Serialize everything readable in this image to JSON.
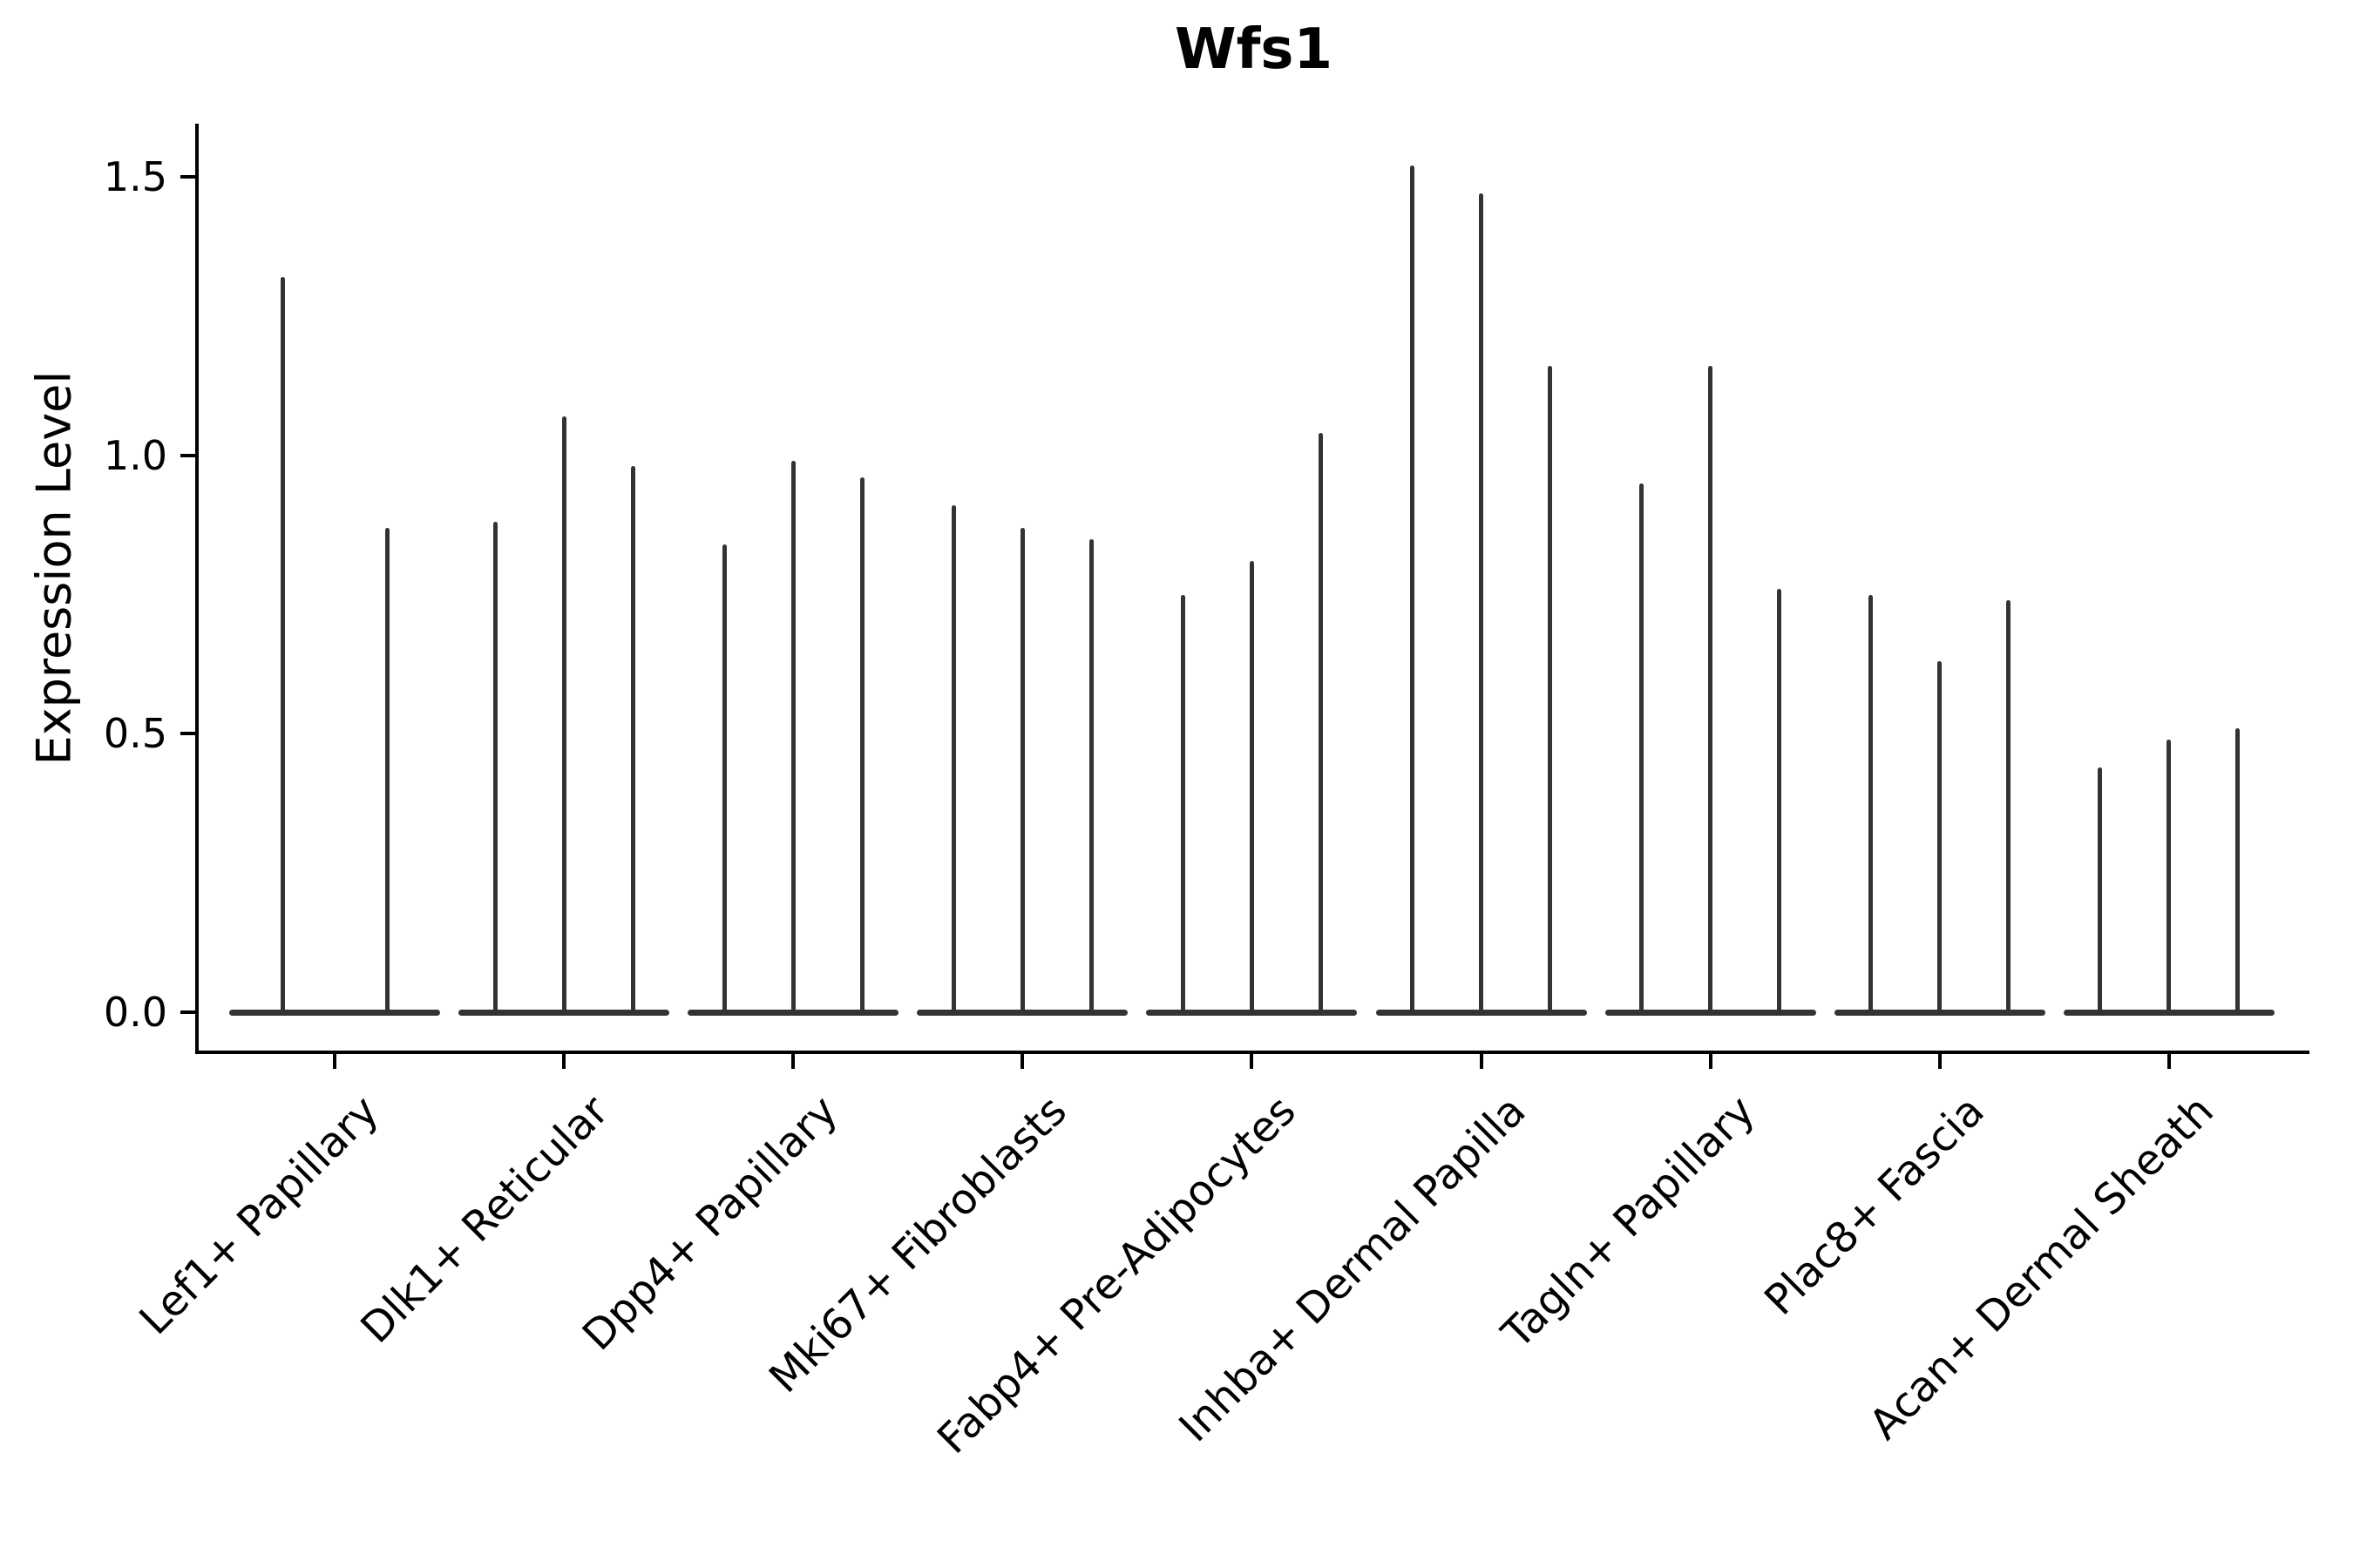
{
  "figure": {
    "title": "Wfs1",
    "y_axis_label": "Expression Level"
  },
  "chart_data": {
    "type": "violin",
    "title": "Wfs1",
    "xlabel": "",
    "ylabel": "Expression Level",
    "ylim": [
      -0.072,
      1.595
    ],
    "yticks": [
      0.0,
      0.5,
      1.0,
      1.5
    ],
    "ytick_labels": [
      "0.0",
      "0.5",
      "1.0",
      "1.5"
    ],
    "grid": false,
    "legend": "none",
    "orientation": "vertical",
    "style_note": "needle-thin violins: flat base bump at 0 with a thin vertical spike up to the max expression value",
    "categories": [
      "Lef1+ Papillary",
      "Dlk1+ Reticular",
      "Dpp4+ Papillary",
      "Mki67+ Fibroblasts",
      "Fabp4+ Pre-Adipocytes",
      "Inhba+ Dermal Papilla",
      "Tagln+ Papillary",
      "Plac8+ Fascia",
      "Acan+ Dermal Sheath"
    ],
    "groups": [
      {
        "label": "Lef1+ Papillary",
        "violin_peaks": [
          1.32,
          0.87
        ]
      },
      {
        "label": "Dlk1+ Reticular",
        "violin_peaks": [
          0.88,
          1.07,
          0.98
        ]
      },
      {
        "label": "Dpp4+ Papillary",
        "violin_peaks": [
          0.84,
          0.99,
          0.96
        ]
      },
      {
        "label": "Mki67+ Fibroblasts",
        "violin_peaks": [
          0.91,
          0.87,
          0.85
        ]
      },
      {
        "label": "Fabp4+ Pre-Adipocytes",
        "violin_peaks": [
          0.75,
          0.81,
          1.04
        ]
      },
      {
        "label": "Inhba+ Dermal Papilla",
        "violin_peaks": [
          1.52,
          1.47,
          1.16
        ]
      },
      {
        "label": "Tagln+ Papillary",
        "violin_peaks": [
          0.95,
          1.16,
          0.76
        ]
      },
      {
        "label": "Plac8+ Fascia",
        "violin_peaks": [
          0.75,
          0.63,
          0.74
        ]
      },
      {
        "label": "Acan+ Dermal Sheath",
        "violin_peaks": [
          0.44,
          0.49,
          0.51
        ]
      }
    ],
    "colors": {
      "violin": "#333333",
      "axis": "#000000",
      "text": "#000000",
      "background": "#ffffff"
    }
  }
}
